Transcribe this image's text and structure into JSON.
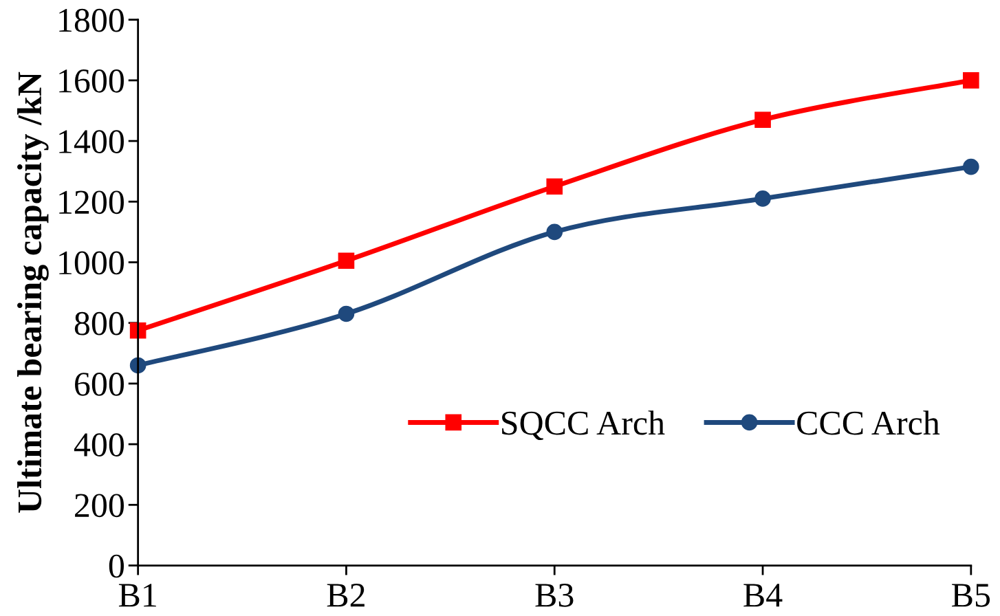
{
  "chart_data": {
    "type": "line",
    "ylabel": "Ultimate bearing capacity /kN",
    "categories": [
      "B1",
      "B2",
      "B3",
      "B4",
      "B5"
    ],
    "series": [
      {
        "name": "SQCC Arch",
        "color": "#ff0000",
        "marker": "square",
        "values": [
          775,
          1005,
          1250,
          1470,
          1600
        ]
      },
      {
        "name": "CCC Arch",
        "color": "#1f497d",
        "marker": "circle",
        "values": [
          660,
          830,
          1100,
          1210,
          1315
        ]
      }
    ],
    "ylim": [
      0,
      1800
    ],
    "yticks": [
      0,
      200,
      400,
      600,
      800,
      1000,
      1200,
      1400,
      1600,
      1800
    ],
    "grid": false,
    "legend": "bottom right",
    "line_style": "solid"
  }
}
